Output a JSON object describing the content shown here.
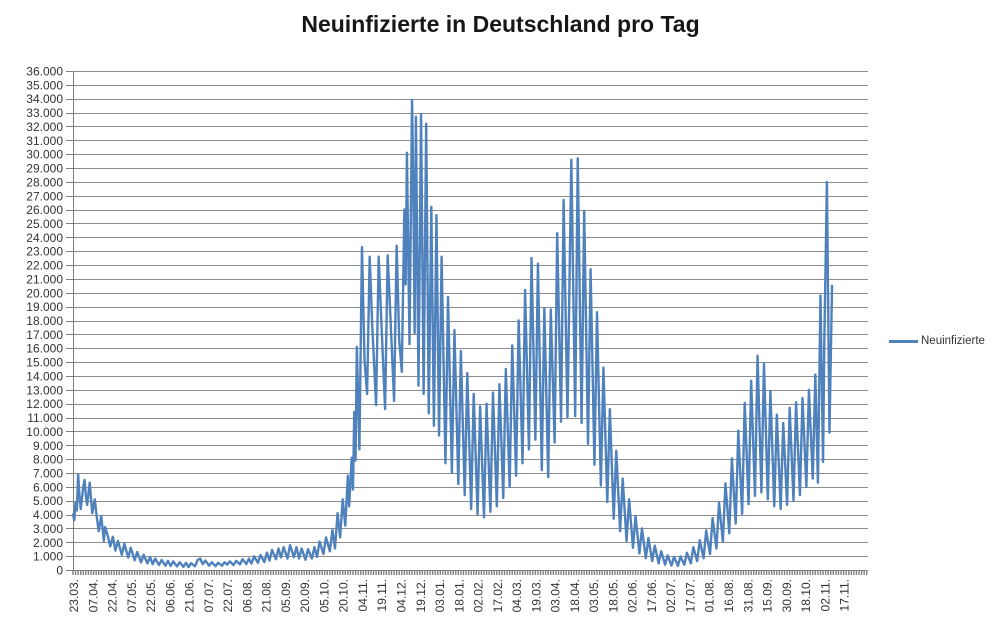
{
  "chart_data": {
    "type": "line",
    "title": "Neuinfizierte in Deutschland pro Tag",
    "legend_position": "right",
    "grid": true,
    "x_total_days": 619,
    "x_label_step_days": 15,
    "x_tick_labels": [
      "23.03.",
      "07.04.",
      "22.04.",
      "07.05.",
      "22.05.",
      "06.06.",
      "21.06.",
      "07.07.",
      "22.07.",
      "06.08.",
      "21.08.",
      "05.09.",
      "20.09.",
      "05.10.",
      "20.10.",
      "04.11.",
      "19.11.",
      "04.12.",
      "19.12.",
      "03.01.",
      "18.01.",
      "02.02.",
      "17.02.",
      "04.03.",
      "19.03.",
      "03.04.",
      "18.04.",
      "03.05.",
      "18.05.",
      "02.06.",
      "17.06.",
      "02.07.",
      "17.07.",
      "01.08.",
      "16.08.",
      "31.08.",
      "15.09.",
      "30.09.",
      "18.10.",
      "02.11.",
      "17.11."
    ],
    "y_min": 0,
    "y_max": 36000,
    "y_step": 1000,
    "y_tick_labels": [
      "0",
      "1.000",
      "2.000",
      "3.000",
      "4.000",
      "5.000",
      "6.000",
      "7.000",
      "8.000",
      "9.000",
      "10.000",
      "11.000",
      "12.000",
      "13.000",
      "14.000",
      "15.000",
      "16.000",
      "17.000",
      "18.000",
      "19.000",
      "20.000",
      "21.000",
      "22.000",
      "23.000",
      "24.000",
      "25.000",
      "26.000",
      "27.000",
      "28.000",
      "29.000",
      "30.000",
      "31.000",
      "32.000",
      "33.000",
      "34.000",
      "35.000",
      "36.000"
    ],
    "colors": {
      "line": "#4f81bd",
      "grid": "#8c8c8c",
      "axis": "#808080",
      "text": "#333333"
    },
    "series": [
      {
        "name": "Neuinfizierte",
        "color": "#4f81bd",
        "points": [
          [
            0,
            4000
          ],
          [
            1,
            3600
          ],
          [
            2,
            4900
          ],
          [
            3,
            4300
          ],
          [
            4,
            6900
          ],
          [
            5,
            5400
          ],
          [
            6,
            4400
          ],
          [
            8,
            6000
          ],
          [
            9,
            6500
          ],
          [
            10,
            5400
          ],
          [
            11,
            4700
          ],
          [
            13,
            6300
          ],
          [
            14,
            5200
          ],
          [
            15,
            4100
          ],
          [
            17,
            5100
          ],
          [
            18,
            4200
          ],
          [
            20,
            2800
          ],
          [
            22,
            3900
          ],
          [
            24,
            2100
          ],
          [
            25,
            3100
          ],
          [
            27,
            2500
          ],
          [
            29,
            1700
          ],
          [
            31,
            2400
          ],
          [
            33,
            1400
          ],
          [
            35,
            2100
          ],
          [
            38,
            1100
          ],
          [
            40,
            1900
          ],
          [
            43,
            900
          ],
          [
            45,
            1600
          ],
          [
            48,
            700
          ],
          [
            50,
            1300
          ],
          [
            53,
            550
          ],
          [
            55,
            1100
          ],
          [
            58,
            480
          ],
          [
            60,
            950
          ],
          [
            62,
            420
          ],
          [
            64,
            820
          ],
          [
            67,
            360
          ],
          [
            69,
            720
          ],
          [
            72,
            310
          ],
          [
            74,
            660
          ],
          [
            76,
            290
          ],
          [
            78,
            620
          ],
          [
            81,
            260
          ],
          [
            83,
            560
          ],
          [
            86,
            230
          ],
          [
            88,
            520
          ],
          [
            90,
            210
          ],
          [
            92,
            490
          ],
          [
            95,
            270
          ],
          [
            97,
            720
          ],
          [
            99,
            830
          ],
          [
            101,
            420
          ],
          [
            103,
            680
          ],
          [
            106,
            310
          ],
          [
            108,
            560
          ],
          [
            111,
            280
          ],
          [
            113,
            520
          ],
          [
            116,
            310
          ],
          [
            118,
            560
          ],
          [
            120,
            390
          ],
          [
            122,
            620
          ],
          [
            125,
            360
          ],
          [
            127,
            660
          ],
          [
            130,
            410
          ],
          [
            132,
            780
          ],
          [
            135,
            430
          ],
          [
            137,
            820
          ],
          [
            139,
            470
          ],
          [
            141,
            980
          ],
          [
            144,
            520
          ],
          [
            146,
            1080
          ],
          [
            149,
            570
          ],
          [
            151,
            1250
          ],
          [
            153,
            680
          ],
          [
            155,
            1450
          ],
          [
            158,
            780
          ],
          [
            160,
            1550
          ],
          [
            162,
            900
          ],
          [
            164,
            1650
          ],
          [
            167,
            820
          ],
          [
            169,
            1800
          ],
          [
            172,
            920
          ],
          [
            174,
            1650
          ],
          [
            176,
            830
          ],
          [
            178,
            1550
          ],
          [
            181,
            740
          ],
          [
            183,
            1500
          ],
          [
            186,
            830
          ],
          [
            188,
            1650
          ],
          [
            190,
            950
          ],
          [
            192,
            2050
          ],
          [
            195,
            1150
          ],
          [
            197,
            2350
          ],
          [
            200,
            1350
          ],
          [
            202,
            2900
          ],
          [
            204,
            1550
          ],
          [
            206,
            4100
          ],
          [
            208,
            2350
          ],
          [
            210,
            5100
          ],
          [
            212,
            3200
          ],
          [
            214,
            6800
          ],
          [
            215,
            4600
          ],
          [
            217,
            8100
          ],
          [
            218,
            5800
          ],
          [
            219,
            11400
          ],
          [
            220,
            7900
          ],
          [
            221,
            16100
          ],
          [
            223,
            8700
          ],
          [
            225,
            23300
          ],
          [
            227,
            15100
          ],
          [
            229,
            12700
          ],
          [
            231,
            22600
          ],
          [
            233,
            17600
          ],
          [
            236,
            11900
          ],
          [
            238,
            22600
          ],
          [
            240,
            18100
          ],
          [
            243,
            11600
          ],
          [
            245,
            22700
          ],
          [
            247,
            18600
          ],
          [
            250,
            12200
          ],
          [
            252,
            23400
          ],
          [
            254,
            16600
          ],
          [
            256,
            14300
          ],
          [
            258,
            26000
          ],
          [
            259,
            20600
          ],
          [
            260,
            30100
          ],
          [
            262,
            16300
          ],
          [
            264,
            33900
          ],
          [
            265,
            27600
          ],
          [
            266,
            17100
          ],
          [
            267,
            32700
          ],
          [
            269,
            13300
          ],
          [
            271,
            32900
          ],
          [
            273,
            12700
          ],
          [
            275,
            32200
          ],
          [
            277,
            11300
          ],
          [
            279,
            26200
          ],
          [
            281,
            10400
          ],
          [
            283,
            25600
          ],
          [
            285,
            9700
          ],
          [
            287,
            22600
          ],
          [
            290,
            7700
          ],
          [
            292,
            19700
          ],
          [
            295,
            7000
          ],
          [
            297,
            17300
          ],
          [
            300,
            6200
          ],
          [
            302,
            15800
          ],
          [
            305,
            5400
          ],
          [
            307,
            14200
          ],
          [
            310,
            4400
          ],
          [
            312,
            12700
          ],
          [
            315,
            4000
          ],
          [
            317,
            11800
          ],
          [
            320,
            3800
          ],
          [
            322,
            12000
          ],
          [
            325,
            4200
          ],
          [
            327,
            12800
          ],
          [
            330,
            4600
          ],
          [
            332,
            13400
          ],
          [
            335,
            5200
          ],
          [
            337,
            14500
          ],
          [
            340,
            6000
          ],
          [
            342,
            16200
          ],
          [
            345,
            6800
          ],
          [
            347,
            18000
          ],
          [
            350,
            7700
          ],
          [
            352,
            20200
          ],
          [
            355,
            8700
          ],
          [
            357,
            22500
          ],
          [
            360,
            9400
          ],
          [
            362,
            22100
          ],
          [
            365,
            7200
          ],
          [
            367,
            18900
          ],
          [
            370,
            6700
          ],
          [
            372,
            18800
          ],
          [
            375,
            9200
          ],
          [
            377,
            24300
          ],
          [
            380,
            10700
          ],
          [
            382,
            26700
          ],
          [
            385,
            11000
          ],
          [
            388,
            29600
          ],
          [
            391,
            11100
          ],
          [
            393,
            29700
          ],
          [
            396,
            10600
          ],
          [
            398,
            25900
          ],
          [
            401,
            9100
          ],
          [
            403,
            21700
          ],
          [
            406,
            7600
          ],
          [
            408,
            18600
          ],
          [
            411,
            6100
          ],
          [
            413,
            14600
          ],
          [
            416,
            4900
          ],
          [
            418,
            11600
          ],
          [
            421,
            3700
          ],
          [
            423,
            8600
          ],
          [
            426,
            2800
          ],
          [
            428,
            6600
          ],
          [
            431,
            2100
          ],
          [
            433,
            5100
          ],
          [
            436,
            1600
          ],
          [
            438,
            3900
          ],
          [
            441,
            1200
          ],
          [
            443,
            3000
          ],
          [
            446,
            850
          ],
          [
            448,
            2300
          ],
          [
            451,
            650
          ],
          [
            453,
            1750
          ],
          [
            456,
            480
          ],
          [
            458,
            1350
          ],
          [
            461,
            380
          ],
          [
            463,
            1050
          ],
          [
            466,
            320
          ],
          [
            468,
            950
          ],
          [
            471,
            300
          ],
          [
            473,
            980
          ],
          [
            476,
            380
          ],
          [
            478,
            1250
          ],
          [
            481,
            480
          ],
          [
            483,
            1650
          ],
          [
            486,
            640
          ],
          [
            488,
            2150
          ],
          [
            491,
            850
          ],
          [
            493,
            2850
          ],
          [
            496,
            1150
          ],
          [
            498,
            3750
          ],
          [
            501,
            1550
          ],
          [
            503,
            4850
          ],
          [
            506,
            2050
          ],
          [
            508,
            6250
          ],
          [
            511,
            2650
          ],
          [
            513,
            8050
          ],
          [
            516,
            3350
          ],
          [
            518,
            10050
          ],
          [
            521,
            4050
          ],
          [
            523,
            12050
          ],
          [
            526,
            4750
          ],
          [
            528,
            13650
          ],
          [
            531,
            5350
          ],
          [
            533,
            15450
          ],
          [
            536,
            5600
          ],
          [
            538,
            14900
          ],
          [
            541,
            5100
          ],
          [
            543,
            12900
          ],
          [
            546,
            4600
          ],
          [
            548,
            11200
          ],
          [
            551,
            4400
          ],
          [
            553,
            10600
          ],
          [
            556,
            4700
          ],
          [
            558,
            11700
          ],
          [
            561,
            5000
          ],
          [
            563,
            12100
          ],
          [
            566,
            5400
          ],
          [
            568,
            12400
          ],
          [
            571,
            6000
          ],
          [
            573,
            13000
          ],
          [
            576,
            6600
          ],
          [
            578,
            14100
          ],
          [
            580,
            6300
          ],
          [
            582,
            19800
          ],
          [
            584,
            7800
          ],
          [
            585,
            16500
          ],
          [
            587,
            28000
          ],
          [
            589,
            9900
          ],
          [
            591,
            20500
          ]
        ]
      }
    ]
  }
}
